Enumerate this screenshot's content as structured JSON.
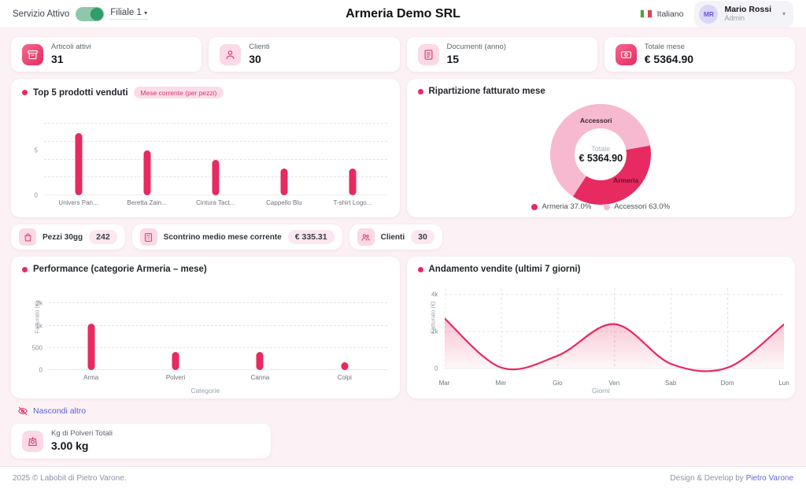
{
  "header": {
    "service_label": "Servizio Attivo",
    "branch": {
      "label": "Filiale 1",
      "caret": "▾"
    },
    "title": "Armeria Demo SRL",
    "language": {
      "label": "Italiano"
    },
    "user": {
      "initials": "MR",
      "name": "Mario Rossi",
      "role": "Admin",
      "caret": "▾"
    }
  },
  "stat_cards": [
    {
      "icon": "archive-icon",
      "label": "Articoli attivi",
      "value": "31"
    },
    {
      "icon": "person-icon",
      "label": "Clienti",
      "value": "30"
    },
    {
      "icon": "document-icon",
      "label": "Documenti (anno)",
      "value": "15"
    },
    {
      "icon": "banknote-icon",
      "label": "Totale mese",
      "value": "€ 5364.90"
    }
  ],
  "pills": [
    {
      "icon": "bag-icon",
      "label": "Pezzi 30gg",
      "value": "242"
    },
    {
      "icon": "calculator-icon",
      "label": "Scontrino medio mese corrente",
      "value": "€ 335.31"
    },
    {
      "icon": "people-icon",
      "label": "Clienti",
      "value": "30"
    }
  ],
  "extras": {
    "hide_link": "Nascondi altro",
    "card": {
      "icon": "scale-icon",
      "label": "Kg di Polveri Totali",
      "value": "3.00 kg"
    }
  },
  "footer": {
    "left": "2025 © Labobit di Pietro Varone.",
    "right_prefix": "Design & Develop by ",
    "right_link": "Pietro Varone"
  },
  "colors": {
    "primary": "#e72a60",
    "light_pink": "#f6b9d0",
    "badge_bg": "#fbdde9",
    "badge_text": "#d6336c"
  },
  "chart_data": [
    {
      "type": "bar",
      "title": "Top 5 prodotti venduti",
      "badge": "Mese corrente (per pezzi)",
      "categories": [
        "Univers Pan...",
        "Beretta Zain...",
        "Cintura Tact...",
        "Cappello Blu",
        "T-shirt Logo..."
      ],
      "values": [
        7,
        5,
        4,
        3,
        3
      ],
      "yticks": [
        {
          "v": 0,
          "label": "0"
        },
        {
          "v": 5,
          "label": "5"
        }
      ],
      "gridlines": [
        2,
        4,
        6,
        8
      ],
      "ylim": [
        0,
        9.7
      ],
      "grid": "dashed-horizontal"
    },
    {
      "type": "pie",
      "title": "Ripartizione fatturato mese",
      "center_label": "Totale",
      "center_value": "€ 5364.90",
      "slices": [
        {
          "name": "Armeria",
          "pct": 37.0,
          "color": "#e72a60"
        },
        {
          "name": "Accessori",
          "pct": 63.0,
          "color": "#f6b9d0"
        }
      ],
      "legend": [
        "Armeria 37.0%",
        "Accessori 63.0%"
      ],
      "start_angle_deg": 80,
      "donut": true,
      "legend_position": "bottom"
    },
    {
      "type": "bar",
      "title": "Performance (categorie Armeria – mese)",
      "categories": [
        "Arma",
        "Polveri",
        "Canna",
        "Colpi"
      ],
      "values": [
        1100,
        410,
        400,
        170
      ],
      "ytick_values": [
        0,
        500,
        1000,
        2000
      ],
      "ytick_labels": [
        "0",
        "500",
        "1k",
        "2k"
      ],
      "axis_mode": "equal-tick-spacing",
      "xlabel": "Categorie",
      "ylabel": "Fatturato (€)",
      "grid": "dashed-horizontal"
    },
    {
      "type": "line",
      "title": "Andamento vendite (ultimi 7 giorni)",
      "x": [
        "Mar",
        "Mer",
        "Gio",
        "Ven",
        "Sab",
        "Dom",
        "Lun"
      ],
      "values": [
        2700,
        50,
        700,
        2400,
        250,
        50,
        2400
      ],
      "ytick_values": [
        0,
        2000,
        4000
      ],
      "ytick_labels": [
        "0",
        "2k",
        "4k"
      ],
      "ylim": [
        0,
        4800
      ],
      "xlabel": "Giorni",
      "ylabel": "Fatturato (€)",
      "grid": "dashed",
      "smooth": true,
      "area_fill": true
    }
  ]
}
